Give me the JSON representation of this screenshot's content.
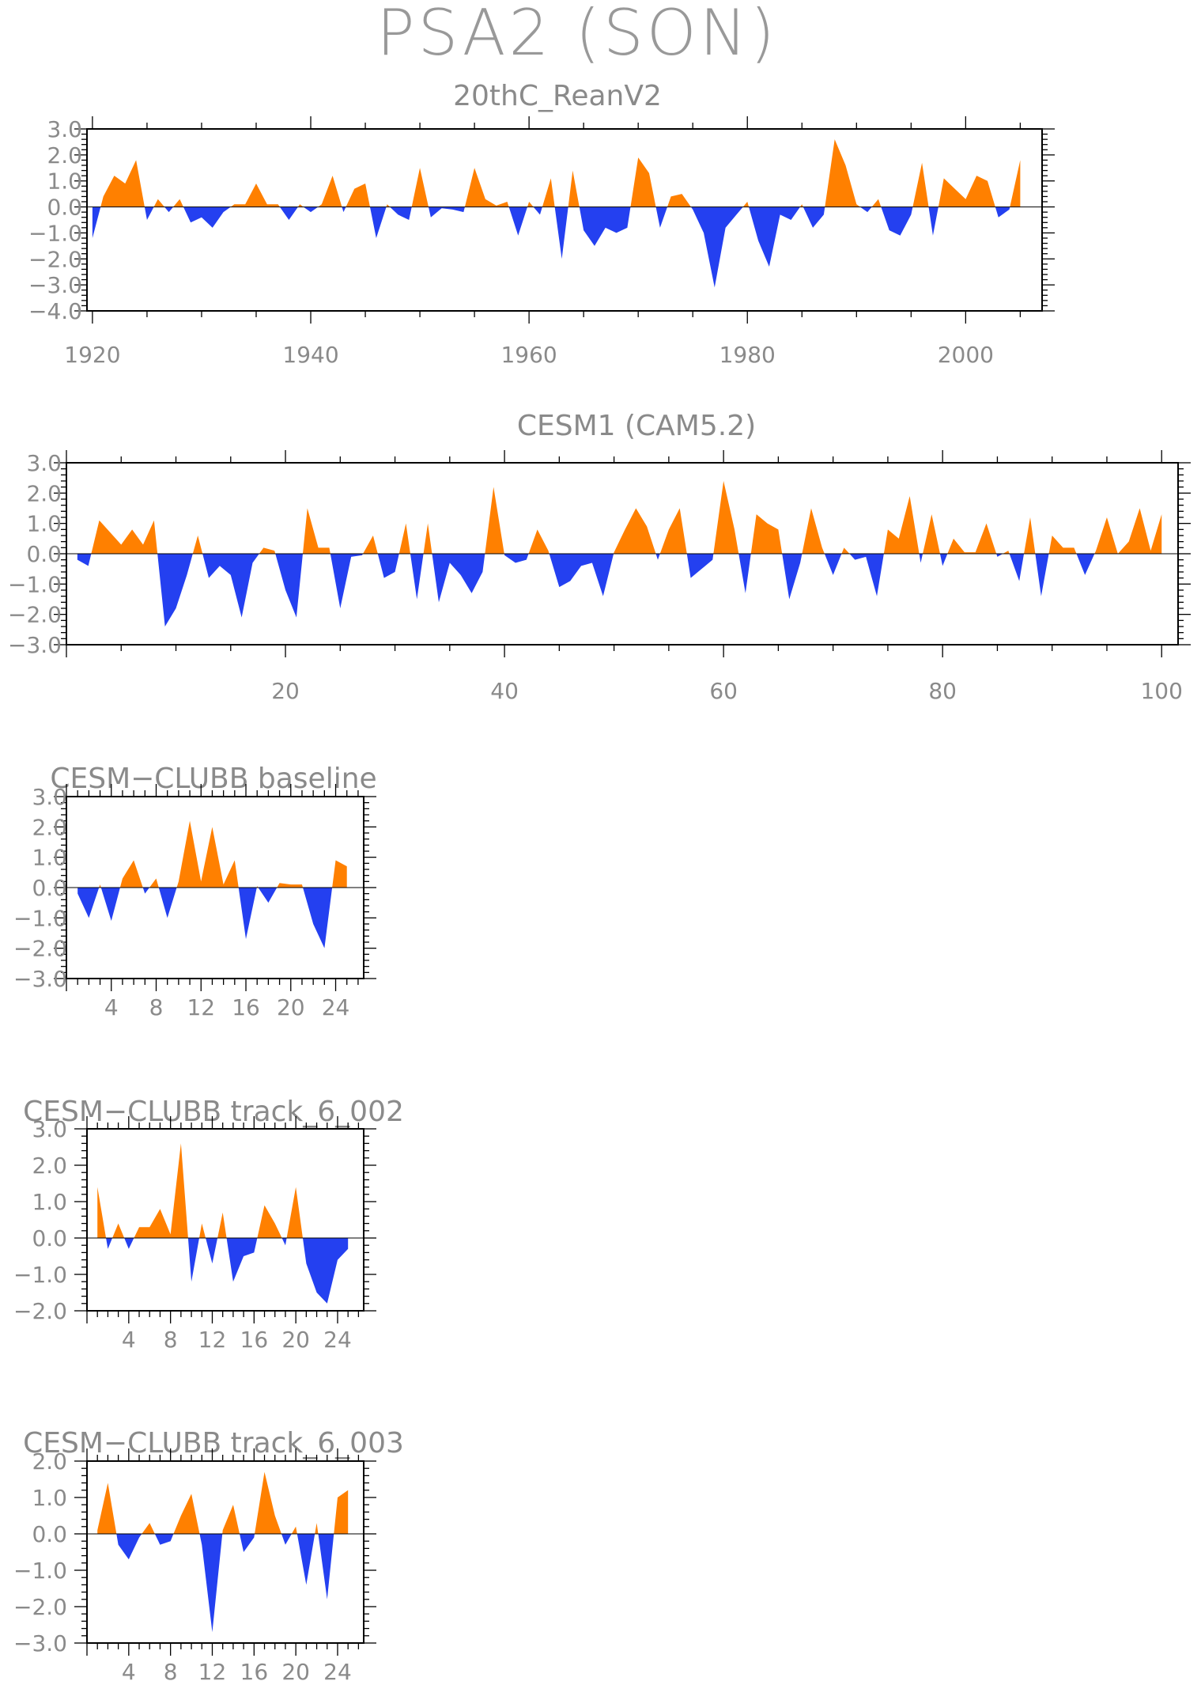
{
  "title": "PSA2 (SON)",
  "colors": {
    "positive": "#FF8000",
    "negative": "#2440F0",
    "frame": "#000000",
    "text": "#8a8a8a"
  },
  "chart_data": [
    {
      "type": "area",
      "title": "20thC_ReanV2",
      "x": [
        1920,
        1921,
        1922,
        1923,
        1924,
        1925,
        1926,
        1927,
        1928,
        1929,
        1930,
        1931,
        1932,
        1933,
        1934,
        1935,
        1936,
        1937,
        1938,
        1939,
        1940,
        1941,
        1942,
        1943,
        1944,
        1945,
        1946,
        1947,
        1948,
        1949,
        1950,
        1951,
        1952,
        1953,
        1954,
        1955,
        1956,
        1957,
        1958,
        1959,
        1960,
        1961,
        1962,
        1963,
        1964,
        1965,
        1966,
        1967,
        1968,
        1969,
        1970,
        1971,
        1972,
        1973,
        1974,
        1975,
        1976,
        1977,
        1978,
        1979,
        1980,
        1981,
        1982,
        1983,
        1984,
        1985,
        1986,
        1987,
        1988,
        1989,
        1990,
        1991,
        1992,
        1993,
        1994,
        1995,
        1996,
        1997,
        1998,
        1999,
        2000,
        2001,
        2002,
        2003,
        2004,
        2005
      ],
      "values": [
        -1.2,
        0.4,
        1.2,
        0.9,
        1.8,
        -0.5,
        0.3,
        -0.2,
        0.3,
        -0.6,
        -0.4,
        -0.8,
        -0.2,
        0.1,
        0.1,
        0.9,
        0.1,
        0.1,
        -0.5,
        0.1,
        -0.2,
        0.1,
        1.2,
        -0.2,
        0.7,
        0.9,
        -1.2,
        0.1,
        -0.3,
        -0.5,
        1.5,
        -0.4,
        -0.05,
        -0.1,
        -0.2,
        1.5,
        0.3,
        0.05,
        0.2,
        -1.1,
        0.2,
        -0.3,
        1.1,
        -2.0,
        1.4,
        -0.9,
        -1.5,
        -0.8,
        -1.0,
        -0.8,
        1.9,
        1.3,
        -0.8,
        0.4,
        0.5,
        -0.1,
        -1.0,
        -3.1,
        -0.8,
        -0.3,
        0.2,
        -1.3,
        -2.3,
        -0.3,
        -0.5,
        0.1,
        -0.8,
        -0.3,
        2.6,
        1.6,
        0.1,
        -0.2,
        0.3,
        -0.9,
        -1.1,
        -0.3,
        1.7,
        -1.1,
        1.1,
        0.7,
        0.3,
        1.2,
        1.0,
        -0.4,
        -0.1,
        1.8
      ],
      "xlim": [
        1919.5,
        2007
      ],
      "ylim": [
        -4.0,
        3.0
      ],
      "x_ticks": [
        "1920",
        "1940",
        "1960",
        "1980",
        "2000"
      ],
      "y_ticks": [
        "3.0",
        "2.0",
        "1.0",
        "0.0",
        "−1.0",
        "−2.0",
        "−3.0",
        "−4.0"
      ]
    },
    {
      "type": "area",
      "title": "CESM1 (CAM5.2)",
      "x": [
        1,
        2,
        3,
        4,
        5,
        6,
        7,
        8,
        9,
        10,
        11,
        12,
        13,
        14,
        15,
        16,
        17,
        18,
        19,
        20,
        21,
        22,
        23,
        24,
        25,
        26,
        27,
        28,
        29,
        30,
        31,
        32,
        33,
        34,
        35,
        36,
        37,
        38,
        39,
        40,
        41,
        42,
        43,
        44,
        45,
        46,
        47,
        48,
        49,
        50,
        51,
        52,
        53,
        54,
        55,
        56,
        57,
        58,
        59,
        60,
        61,
        62,
        63,
        64,
        65,
        66,
        67,
        68,
        69,
        70,
        71,
        72,
        73,
        74,
        75,
        76,
        77,
        78,
        79,
        80,
        81,
        82,
        83,
        84,
        85,
        86,
        87,
        88,
        89,
        90,
        91,
        92,
        93,
        94,
        95,
        96,
        97,
        98,
        99,
        100
      ],
      "values": [
        -0.2,
        -0.4,
        1.1,
        0.7,
        0.3,
        0.8,
        0.3,
        1.1,
        -2.4,
        -1.8,
        -0.7,
        0.6,
        -0.8,
        -0.4,
        -0.7,
        -2.1,
        -0.3,
        0.2,
        0.1,
        -1.2,
        -2.1,
        1.5,
        0.2,
        0.2,
        -1.8,
        -0.1,
        -0.05,
        0.6,
        -0.8,
        -0.6,
        1.0,
        -1.5,
        1.0,
        -1.6,
        -0.3,
        -0.7,
        -1.3,
        -0.6,
        2.2,
        -0.05,
        -0.3,
        -0.2,
        0.8,
        0.1,
        -1.1,
        -0.9,
        -0.4,
        -0.3,
        -1.4,
        0.05,
        0.8,
        1.5,
        0.9,
        -0.2,
        0.8,
        1.5,
        -0.8,
        -0.5,
        -0.2,
        2.4,
        0.8,
        -1.3,
        1.3,
        1.0,
        0.8,
        -1.5,
        -0.3,
        1.5,
        0.2,
        -0.7,
        0.2,
        -0.2,
        -0.1,
        -1.4,
        0.8,
        0.5,
        1.9,
        -0.3,
        1.3,
        -0.4,
        0.5,
        0.05,
        0.05,
        1.0,
        -0.1,
        0.1,
        -0.9,
        1.2,
        -1.4,
        0.6,
        0.2,
        0.2,
        -0.7,
        0.1,
        1.2,
        0.0,
        0.4,
        1.5,
        0.1,
        1.3
      ],
      "xlim": [
        0,
        101.5
      ],
      "ylim": [
        -3.0,
        3.0
      ],
      "x_ticks": [
        "20",
        "40",
        "60",
        "80",
        "100"
      ],
      "y_ticks": [
        "3.0",
        "2.0",
        "1.0",
        "0.0",
        "−1.0",
        "−2.0",
        "−3.0"
      ]
    },
    {
      "type": "area",
      "title": "CESM−CLUBB baseline",
      "x": [
        1,
        2,
        3,
        4,
        5,
        6,
        7,
        8,
        9,
        10,
        11,
        12,
        13,
        14,
        15,
        16,
        17,
        18,
        19,
        20,
        21,
        22,
        23,
        24,
        25
      ],
      "values": [
        -0.2,
        -1.0,
        0.1,
        -1.1,
        0.3,
        0.9,
        -0.2,
        0.3,
        -1.0,
        0.2,
        2.2,
        0.2,
        2.0,
        0.1,
        0.9,
        -1.7,
        0.05,
        -0.5,
        0.15,
        0.1,
        0.1,
        -1.2,
        -2.0,
        0.9,
        0.7
      ],
      "xlim": [
        0,
        26.5
      ],
      "ylim": [
        -3.0,
        3.0
      ],
      "x_ticks": [
        "4",
        "8",
        "12",
        "16",
        "20",
        "24"
      ],
      "y_ticks": [
        "3.0",
        "2.0",
        "1.0",
        "0.0",
        "−1.0",
        "−2.0",
        "−3.0"
      ]
    },
    {
      "type": "area",
      "title": "CESM−CLUBB track_6_002",
      "x": [
        1,
        2,
        3,
        4,
        5,
        6,
        7,
        8,
        9,
        10,
        11,
        12,
        13,
        14,
        15,
        16,
        17,
        18,
        19,
        20,
        21,
        22,
        23,
        24,
        25
      ],
      "values": [
        1.4,
        -0.3,
        0.4,
        -0.3,
        0.3,
        0.3,
        0.8,
        0.1,
        2.6,
        -1.2,
        0.4,
        -0.7,
        0.7,
        -1.2,
        -0.5,
        -0.4,
        0.9,
        0.4,
        -0.2,
        1.4,
        -0.7,
        -1.5,
        -1.8,
        -0.6,
        -0.3
      ],
      "xlim": [
        0,
        26.5
      ],
      "ylim": [
        -2.0,
        3.0
      ],
      "x_ticks": [
        "4",
        "8",
        "12",
        "16",
        "20",
        "24"
      ],
      "y_ticks": [
        "3.0",
        "2.0",
        "1.0",
        "0.0",
        "−1.0",
        "−2.0"
      ]
    },
    {
      "type": "area",
      "title": "CESM−CLUBB track_6_003",
      "x": [
        1,
        2,
        3,
        4,
        5,
        6,
        7,
        8,
        9,
        10,
        11,
        12,
        13,
        14,
        15,
        16,
        17,
        18,
        19,
        20,
        21,
        22,
        23,
        24,
        25
      ],
      "values": [
        0.1,
        1.4,
        -0.3,
        -0.7,
        -0.1,
        0.3,
        -0.3,
        -0.2,
        0.5,
        1.1,
        -0.3,
        -2.7,
        0.1,
        0.8,
        -0.5,
        -0.1,
        1.7,
        0.5,
        -0.3,
        0.2,
        -1.4,
        0.3,
        -1.8,
        1.0,
        1.2
      ],
      "xlim": [
        0,
        26.5
      ],
      "ylim": [
        -3.0,
        2.0
      ],
      "x_ticks": [
        "4",
        "8",
        "12",
        "16",
        "20",
        "24"
      ],
      "y_ticks": [
        "2.0",
        "1.0",
        "0.0",
        "−1.0",
        "−2.0",
        "−3.0"
      ]
    }
  ]
}
